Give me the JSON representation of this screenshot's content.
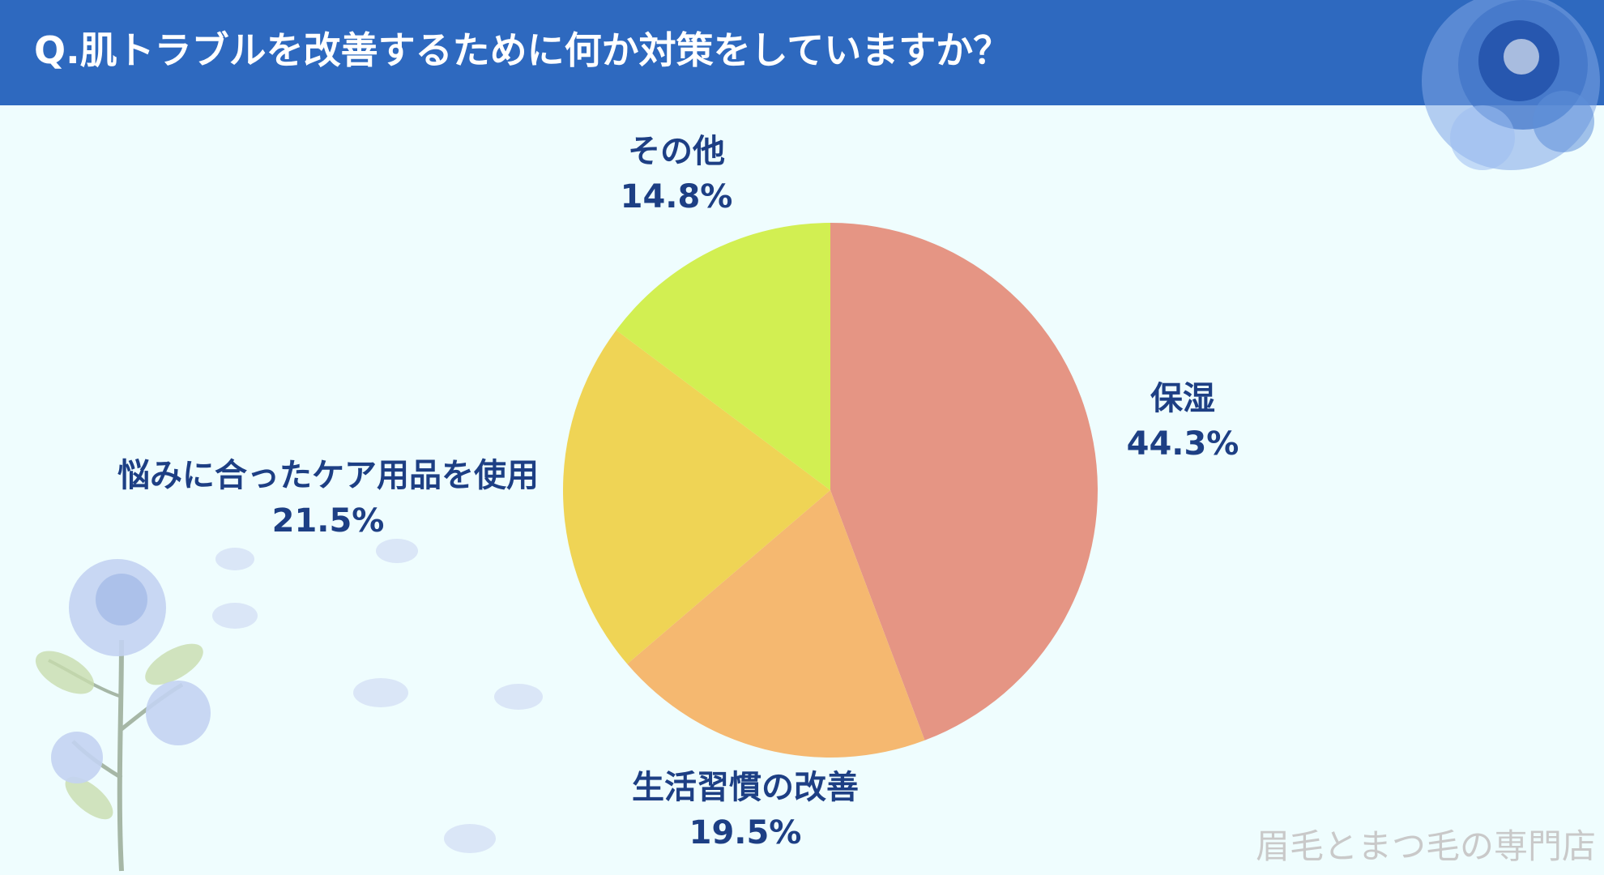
{
  "header": {
    "title": "Q.肌トラブルを改善するために何か対策をしていますか？"
  },
  "chart_data": {
    "type": "pie",
    "title": "Q.肌トラブルを改善するために何か対策をしていますか？",
    "slices": [
      {
        "label": "保湿",
        "value": 44.3,
        "value_text": "44.3%",
        "color": "#e59584"
      },
      {
        "label": "生活習慣の改善",
        "value": 19.5,
        "value_text": "19.5%",
        "color": "#f5b870"
      },
      {
        "label": "悩みに合ったケア用品を使用",
        "value": 21.5,
        "value_text": "21.5%",
        "color": "#efd455"
      },
      {
        "label": "その他",
        "value": 14.8,
        "value_text": "14.8%",
        "color": "#d2ef52"
      }
    ],
    "start": "12 o'clock",
    "direction": "clockwise",
    "legend": "none (direct labels)"
  },
  "colors": {
    "header_bg": "#2e69bf",
    "background": "#effdfe",
    "label_text": "#1d3f84"
  },
  "watermark": "眉毛とまつ毛の専門店",
  "decorations": {
    "top_right": "blue-rose-illustration",
    "bottom_left": "blue-rose-stems-illustration"
  }
}
